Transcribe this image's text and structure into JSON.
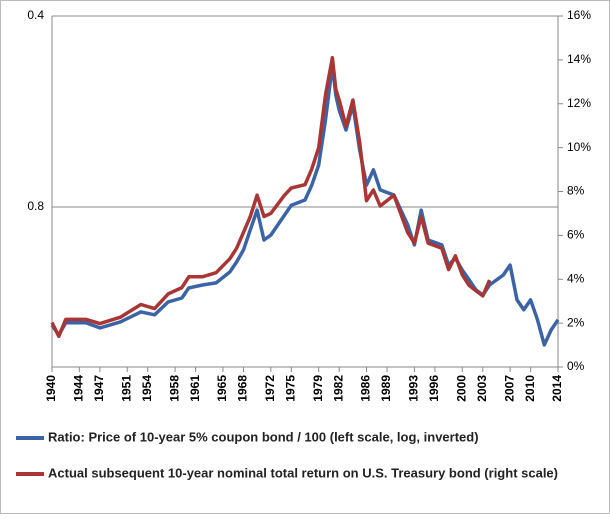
{
  "chart_data": {
    "type": "line",
    "xlim": [
      1940,
      2014
    ],
    "xticks": [
      1940,
      1944,
      1947,
      1951,
      1954,
      1958,
      1961,
      1965,
      1968,
      1972,
      1975,
      1979,
      1982,
      1986,
      1989,
      1993,
      1996,
      2000,
      2003,
      2007,
      2010,
      2014
    ],
    "ylim": [
      0.4,
      1.43
    ],
    "y_log": true,
    "y_inverted": true,
    "yticks": [
      0.4,
      0.8
    ],
    "y2lim": [
      0,
      16
    ],
    "y2ticks": [
      {
        "value": 0,
        "label": "0%"
      },
      {
        "value": 2,
        "label": "2%"
      },
      {
        "value": 4,
        "label": "4%"
      },
      {
        "value": 6,
        "label": "6%"
      },
      {
        "value": 8,
        "label": "8%"
      },
      {
        "value": 10,
        "label": "10%"
      },
      {
        "value": 12,
        "label": "12%"
      },
      {
        "value": 14,
        "label": "14%"
      },
      {
        "value": 16,
        "label": "16%"
      }
    ],
    "grid": true,
    "series": [
      {
        "name": "Ratio: Price of 10-year 5% coupon bond / 100 (left scale, log, inverted)",
        "color": "#3b64a6",
        "axis": "y",
        "x": [
          1940,
          1941,
          1942,
          1945,
          1947,
          1950,
          1953,
          1955,
          1957,
          1959,
          1960,
          1962,
          1964,
          1966,
          1967,
          1968,
          1969,
          1970,
          1971,
          1972,
          1974,
          1975,
          1977,
          1978,
          1979,
          1980,
          1981,
          1981.5,
          1982,
          1983,
          1984,
          1985,
          1986,
          1987,
          1988,
          1990,
          1992,
          1993,
          1994,
          1995,
          1997,
          1998,
          1999,
          2000,
          2001,
          2002,
          2003,
          2004,
          2006,
          2007,
          2008,
          2009,
          2010,
          2011,
          2012,
          2013,
          2014
        ],
        "values": [
          1.228,
          1.273,
          1.218,
          1.218,
          1.241,
          1.214,
          1.171,
          1.183,
          1.129,
          1.113,
          1.073,
          1.062,
          1.054,
          1.013,
          0.977,
          0.935,
          0.869,
          0.809,
          0.902,
          0.886,
          0.824,
          0.795,
          0.78,
          0.739,
          0.687,
          0.583,
          0.478,
          0.533,
          0.563,
          0.605,
          0.552,
          0.651,
          0.739,
          0.699,
          0.752,
          0.766,
          0.853,
          0.918,
          0.809,
          0.902,
          0.918,
          0.988,
          0.963,
          1.006,
          1.042,
          1.081,
          1.101,
          1.062,
          1.024,
          0.988,
          1.121,
          1.162,
          1.121,
          1.205,
          1.32,
          1.25,
          1.205
        ]
      },
      {
        "name": "Actual subsequent 10-year nominal total return on U.S. Treasury bond (right scale)",
        "color": "#a93535",
        "axis": "y2",
        "x": [
          1940,
          1941,
          1942,
          1945,
          1947,
          1950,
          1953,
          1955,
          1957,
          1959,
          1960,
          1962,
          1964,
          1966,
          1967,
          1968,
          1969,
          1970,
          1971,
          1972,
          1974,
          1975,
          1977,
          1978,
          1979,
          1980,
          1981,
          1981.5,
          1982,
          1983,
          1984,
          1985,
          1986,
          1987,
          1988,
          1990,
          1992,
          1993,
          1994,
          1995,
          1997,
          1998,
          1999,
          2000,
          2001,
          2002,
          2003,
          2004
        ],
        "values": [
          2.03,
          1.4,
          2.17,
          2.17,
          1.98,
          2.27,
          2.85,
          2.66,
          3.33,
          3.62,
          4.11,
          4.11,
          4.3,
          4.93,
          5.41,
          6.14,
          6.86,
          7.83,
          6.86,
          7.0,
          7.83,
          8.16,
          8.31,
          9.03,
          10.0,
          12.4,
          14.1,
          12.66,
          12.17,
          10.97,
          12.17,
          10.24,
          7.58,
          8.07,
          7.34,
          7.83,
          6.14,
          5.65,
          6.86,
          5.65,
          5.41,
          4.44,
          5.07,
          4.2,
          3.72,
          3.48,
          3.24,
          3.96
        ]
      }
    ]
  }
}
